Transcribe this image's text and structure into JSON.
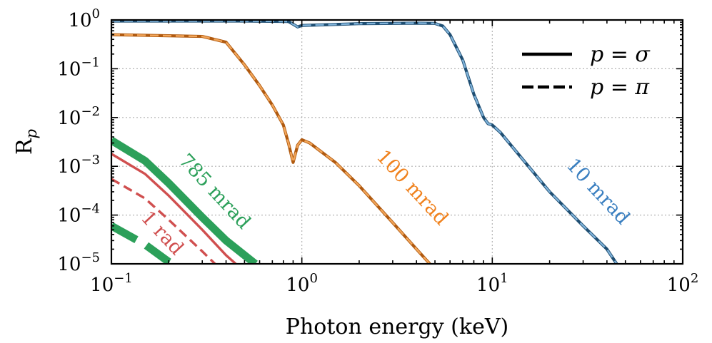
{
  "chart_data": {
    "type": "line",
    "xscale": "log",
    "yscale": "log",
    "xlim": [
      0.1,
      100
    ],
    "ylim": [
      1e-05,
      1
    ],
    "xlabel": "Photon energy (keV)",
    "ylabel": {
      "base": "R",
      "sub": "p"
    },
    "grid": true,
    "legend_position": "top-right",
    "legend": [
      {
        "label": "p = σ",
        "style": "solid"
      },
      {
        "label": "p = π",
        "style": "dashed"
      }
    ],
    "x_ticks": [
      {
        "value": 0.1,
        "base": "10",
        "exp": "−1"
      },
      {
        "value": 1,
        "base": "10",
        "exp": "0"
      },
      {
        "value": 10,
        "base": "10",
        "exp": "1"
      },
      {
        "value": 100,
        "base": "10",
        "exp": "2"
      }
    ],
    "y_ticks": [
      {
        "value": 1,
        "base": "10",
        "exp": "0"
      },
      {
        "value": 0.1,
        "base": "10",
        "exp": "−1"
      },
      {
        "value": 0.01,
        "base": "10",
        "exp": "−2"
      },
      {
        "value": 0.001,
        "base": "10",
        "exp": "−3"
      },
      {
        "value": 0.0001,
        "base": "10",
        "exp": "−4"
      },
      {
        "value": 1e-05,
        "base": "10",
        "exp": "−5"
      }
    ],
    "series": [
      {
        "name": "10 mrad sigma",
        "angle": "10 mrad",
        "polarization": "sigma",
        "color": "#1f4e72",
        "points": [
          [
            0.1,
            0.95
          ],
          [
            0.5,
            0.95
          ],
          [
            0.85,
            0.93
          ],
          [
            0.9,
            0.82
          ],
          [
            0.95,
            0.72
          ],
          [
            1.0,
            0.77
          ],
          [
            2,
            0.84
          ],
          [
            4,
            0.86
          ],
          [
            5,
            0.85
          ],
          [
            5.5,
            0.75
          ],
          [
            6,
            0.5
          ],
          [
            7,
            0.15
          ],
          [
            8,
            0.03
          ],
          [
            9,
            0.01
          ],
          [
            9.5,
            0.0075
          ],
          [
            10,
            0.007
          ],
          [
            11,
            0.005
          ],
          [
            20,
            0.0003
          ],
          [
            30,
            6e-05
          ],
          [
            40,
            2e-05
          ],
          [
            45,
            1e-05
          ]
        ]
      },
      {
        "name": "10 mrad pi",
        "angle": "10 mrad",
        "polarization": "pi",
        "color": "#7fb2d9",
        "points": [
          [
            0.1,
            0.95
          ],
          [
            0.5,
            0.95
          ],
          [
            0.85,
            0.93
          ],
          [
            0.9,
            0.82
          ],
          [
            0.95,
            0.72
          ],
          [
            1.0,
            0.77
          ],
          [
            2,
            0.84
          ],
          [
            4,
            0.86
          ],
          [
            5,
            0.85
          ],
          [
            5.5,
            0.75
          ],
          [
            6,
            0.5
          ],
          [
            7,
            0.15
          ],
          [
            8,
            0.03
          ],
          [
            9,
            0.01
          ],
          [
            9.5,
            0.0075
          ],
          [
            10,
            0.007
          ],
          [
            11,
            0.005
          ],
          [
            20,
            0.0003
          ],
          [
            30,
            6e-05
          ],
          [
            40,
            2e-05
          ],
          [
            45,
            1e-05
          ]
        ]
      },
      {
        "name": "100 mrad sigma",
        "angle": "100 mrad",
        "polarization": "sigma",
        "color": "#b05a10",
        "points": [
          [
            0.1,
            0.5
          ],
          [
            0.3,
            0.46
          ],
          [
            0.4,
            0.35
          ],
          [
            0.5,
            0.12
          ],
          [
            0.6,
            0.045
          ],
          [
            0.7,
            0.018
          ],
          [
            0.8,
            0.007
          ],
          [
            0.85,
            0.003
          ],
          [
            0.9,
            0.0012
          ],
          [
            0.95,
            0.0027
          ],
          [
            1.0,
            0.0035
          ],
          [
            1.1,
            0.003
          ],
          [
            1.5,
            0.0012
          ],
          [
            2,
            0.0004
          ],
          [
            3,
            7e-05
          ],
          [
            4,
            2e-05
          ],
          [
            4.7,
            1e-05
          ]
        ]
      },
      {
        "name": "100 mrad pi",
        "angle": "100 mrad",
        "polarization": "pi",
        "color": "#f2a65a",
        "points": [
          [
            0.1,
            0.5
          ],
          [
            0.3,
            0.46
          ],
          [
            0.4,
            0.35
          ],
          [
            0.5,
            0.12
          ],
          [
            0.6,
            0.045
          ],
          [
            0.7,
            0.018
          ],
          [
            0.8,
            0.007
          ],
          [
            0.85,
            0.003
          ],
          [
            0.9,
            0.0012
          ],
          [
            0.95,
            0.0027
          ],
          [
            1.0,
            0.0035
          ],
          [
            1.1,
            0.003
          ],
          [
            1.5,
            0.0012
          ],
          [
            2,
            0.0004
          ],
          [
            3,
            7e-05
          ],
          [
            4,
            2e-05
          ],
          [
            4.7,
            1e-05
          ]
        ]
      },
      {
        "name": "785 mrad sigma",
        "angle": "785 mrad",
        "polarization": "sigma",
        "color": "#2ca05a",
        "points": [
          [
            0.1,
            0.0034
          ],
          [
            0.15,
            0.0013
          ],
          [
            0.2,
            0.00045
          ],
          [
            0.3,
            9e-05
          ],
          [
            0.4,
            3e-05
          ],
          [
            0.5,
            1.5e-05
          ],
          [
            0.57,
            1e-05
          ]
        ]
      },
      {
        "name": "785 mrad pi",
        "angle": "785 mrad",
        "polarization": "pi",
        "color": "#2ca05a",
        "points": [
          [
            0.1,
            6e-05
          ],
          [
            0.15,
            2.5e-05
          ],
          [
            0.2,
            1.1e-05
          ],
          [
            0.21,
            1e-05
          ]
        ]
      },
      {
        "name": "1 rad sigma",
        "angle": "1 rad",
        "polarization": "sigma",
        "color": "#d04f4f",
        "points": [
          [
            0.1,
            0.0018
          ],
          [
            0.15,
            0.0007
          ],
          [
            0.2,
            0.00025
          ],
          [
            0.3,
            5e-05
          ],
          [
            0.4,
            1.5e-05
          ],
          [
            0.45,
            1e-05
          ]
        ]
      },
      {
        "name": "1 rad pi",
        "angle": "1 rad",
        "polarization": "pi",
        "color": "#d04f4f",
        "points": [
          [
            0.1,
            0.00055
          ],
          [
            0.15,
            0.00022
          ],
          [
            0.2,
            8e-05
          ],
          [
            0.3,
            1.8e-05
          ],
          [
            0.35,
            1e-05
          ]
        ]
      }
    ],
    "annotations": [
      {
        "text": "785 mrad",
        "color": "#2ca05a",
        "x": 0.33,
        "y": 0.00025,
        "rotation": 47
      },
      {
        "text": "1 rad",
        "color": "#d04f4f",
        "x": 0.175,
        "y": 3.5e-05,
        "rotation": 47
      },
      {
        "text": "100 mrad",
        "color": "#f0821e",
        "x": 3.6,
        "y": 0.0003,
        "rotation": 47
      },
      {
        "text": "10 mrad",
        "color": "#3a7fc0",
        "x": 34,
        "y": 0.00025,
        "rotation": 47
      }
    ]
  }
}
